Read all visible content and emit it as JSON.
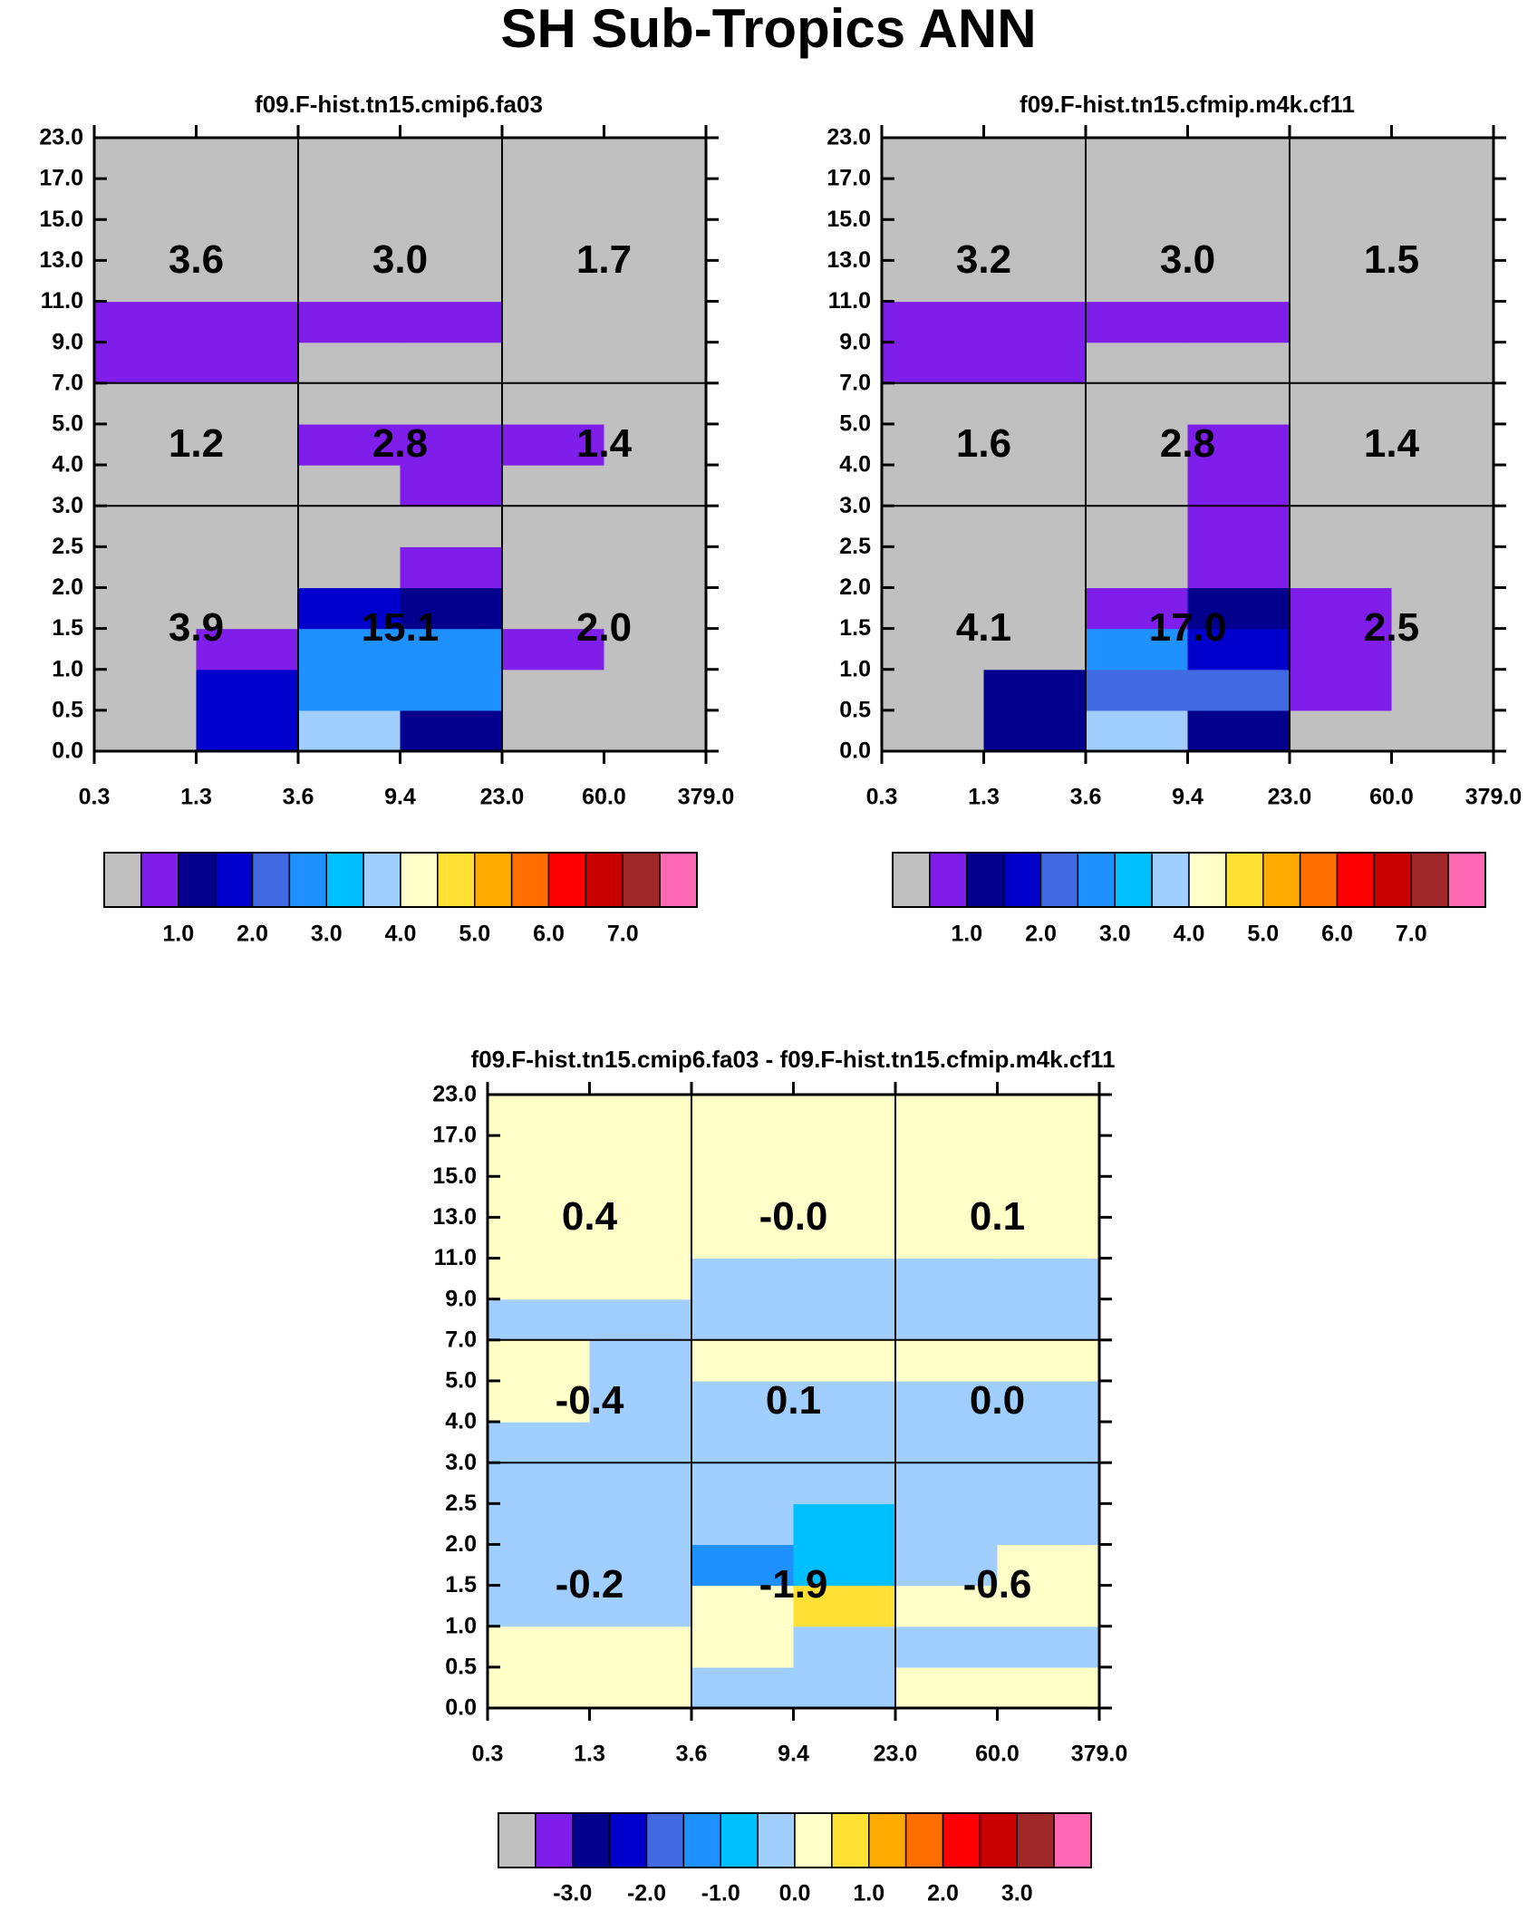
{
  "title": "SH Sub-Tropics ANN",
  "colors": {
    "gray": "#c0c0c0",
    "purple": "#7f1eeb",
    "navy": "#02008c",
    "blue": "#0000cd",
    "royal": "#4169e1",
    "dodger": "#1e90ff",
    "cyan": "#00bfff",
    "lightblue": "#a0cfff",
    "cream": "#ffffc8",
    "yellow": "#ffe135",
    "orange": "#ffaa00",
    "darkorange": "#ff6e00",
    "red": "#ff0000",
    "crimson": "#c80000",
    "brown": "#a02828",
    "pink": "#ff69b4"
  },
  "chart_data": [
    {
      "type": "heatmap",
      "title": "f09.F-hist.tn15.cmip6.fa03",
      "x_tick_labels": [
        "0.3",
        "1.3",
        "3.6",
        "9.4",
        "23.0",
        "60.0",
        "379.0"
      ],
      "y_tick_labels": [
        "0.0",
        "0.5",
        "1.0",
        "1.5",
        "2.0",
        "2.5",
        "3.0",
        "4.0",
        "5.0",
        "7.0",
        "9.0",
        "11.0",
        "13.0",
        "15.0",
        "17.0",
        "23.0"
      ],
      "x_bin_edges": [
        0.3,
        1.3,
        3.6,
        9.4,
        23.0,
        60.0,
        379.0
      ],
      "y_bin_edges": [
        0.0,
        0.5,
        1.0,
        1.5,
        2.0,
        2.5,
        3.0,
        4.0,
        5.0,
        7.0,
        9.0,
        11.0,
        13.0,
        15.0,
        17.0,
        23.0
      ],
      "value_range": [
        0.0,
        7.0
      ],
      "rows_bottom_to_top": [
        [
          "gray",
          "blue",
          "lightblue",
          "navy",
          "gray",
          "gray"
        ],
        [
          "gray",
          "blue",
          "dodger",
          "dodger",
          "gray",
          "gray"
        ],
        [
          "gray",
          "purple",
          "dodger",
          "dodger",
          "purple",
          "gray"
        ],
        [
          "gray",
          "gray",
          "blue",
          "navy",
          "gray",
          "gray"
        ],
        [
          "gray",
          "gray",
          "gray",
          "purple",
          "gray",
          "gray"
        ],
        [
          "gray",
          "gray",
          "gray",
          "gray",
          "gray",
          "gray"
        ],
        [
          "gray",
          "gray",
          "gray",
          "purple",
          "gray",
          "gray"
        ],
        [
          "gray",
          "gray",
          "purple",
          "purple",
          "purple",
          "gray"
        ],
        [
          "gray",
          "gray",
          "gray",
          "gray",
          "gray",
          "gray"
        ],
        [
          "purple",
          "purple",
          "gray",
          "gray",
          "gray",
          "gray"
        ],
        [
          "purple",
          "purple",
          "purple",
          "purple",
          "gray",
          "gray"
        ],
        [
          "gray",
          "gray",
          "gray",
          "gray",
          "gray",
          "gray"
        ],
        [
          "gray",
          "gray",
          "gray",
          "gray",
          "gray",
          "gray"
        ],
        [
          "gray",
          "gray",
          "gray",
          "gray",
          "gray",
          "gray"
        ],
        [
          "gray",
          "gray",
          "gray",
          "gray",
          "gray",
          "gray"
        ]
      ],
      "box_values_top_to_bottom": [
        [
          "3.6",
          "3.0",
          "1.7"
        ],
        [
          "1.2",
          "2.8",
          "1.4"
        ],
        [
          "3.9",
          "15.1",
          "2.0"
        ]
      ],
      "colorbar": {
        "colors": [
          "gray",
          "purple",
          "navy",
          "blue",
          "royal",
          "dodger",
          "cyan",
          "lightblue",
          "cream",
          "yellow",
          "orange",
          "darkorange",
          "red",
          "crimson",
          "brown",
          "pink"
        ],
        "labels": [
          "1.0",
          "2.0",
          "3.0",
          "4.0",
          "5.0",
          "6.0",
          "7.0"
        ],
        "label_boundaries": [
          2,
          4,
          6,
          8,
          10,
          12,
          14
        ]
      }
    },
    {
      "type": "heatmap",
      "title": "f09.F-hist.tn15.cfmip.m4k.cf11",
      "x_tick_labels": [
        "0.3",
        "1.3",
        "3.6",
        "9.4",
        "23.0",
        "60.0",
        "379.0"
      ],
      "y_tick_labels": [
        "0.0",
        "0.5",
        "1.0",
        "1.5",
        "2.0",
        "2.5",
        "3.0",
        "4.0",
        "5.0",
        "7.0",
        "9.0",
        "11.0",
        "13.0",
        "15.0",
        "17.0",
        "23.0"
      ],
      "x_bin_edges": [
        0.3,
        1.3,
        3.6,
        9.4,
        23.0,
        60.0,
        379.0
      ],
      "y_bin_edges": [
        0.0,
        0.5,
        1.0,
        1.5,
        2.0,
        2.5,
        3.0,
        4.0,
        5.0,
        7.0,
        9.0,
        11.0,
        13.0,
        15.0,
        17.0,
        23.0
      ],
      "value_range": [
        0.0,
        7.0
      ],
      "rows_bottom_to_top": [
        [
          "gray",
          "navy",
          "lightblue",
          "navy",
          "gray",
          "gray"
        ],
        [
          "gray",
          "navy",
          "royal",
          "royal",
          "purple",
          "gray"
        ],
        [
          "gray",
          "gray",
          "dodger",
          "blue",
          "purple",
          "gray"
        ],
        [
          "gray",
          "gray",
          "purple",
          "navy",
          "purple",
          "gray"
        ],
        [
          "gray",
          "gray",
          "gray",
          "purple",
          "gray",
          "gray"
        ],
        [
          "gray",
          "gray",
          "gray",
          "purple",
          "gray",
          "gray"
        ],
        [
          "gray",
          "gray",
          "gray",
          "purple",
          "gray",
          "gray"
        ],
        [
          "gray",
          "gray",
          "gray",
          "purple",
          "gray",
          "gray"
        ],
        [
          "gray",
          "gray",
          "gray",
          "gray",
          "gray",
          "gray"
        ],
        [
          "purple",
          "purple",
          "gray",
          "gray",
          "gray",
          "gray"
        ],
        [
          "purple",
          "purple",
          "purple",
          "purple",
          "gray",
          "gray"
        ],
        [
          "gray",
          "gray",
          "gray",
          "gray",
          "gray",
          "gray"
        ],
        [
          "gray",
          "gray",
          "gray",
          "gray",
          "gray",
          "gray"
        ],
        [
          "gray",
          "gray",
          "gray",
          "gray",
          "gray",
          "gray"
        ],
        [
          "gray",
          "gray",
          "gray",
          "gray",
          "gray",
          "gray"
        ]
      ],
      "box_values_top_to_bottom": [
        [
          "3.2",
          "3.0",
          "1.5"
        ],
        [
          "1.6",
          "2.8",
          "1.4"
        ],
        [
          "4.1",
          "17.0",
          "2.5"
        ]
      ],
      "colorbar": {
        "colors": [
          "gray",
          "purple",
          "navy",
          "blue",
          "royal",
          "dodger",
          "cyan",
          "lightblue",
          "cream",
          "yellow",
          "orange",
          "darkorange",
          "red",
          "crimson",
          "brown",
          "pink"
        ],
        "labels": [
          "1.0",
          "2.0",
          "3.0",
          "4.0",
          "5.0",
          "6.0",
          "7.0"
        ],
        "label_boundaries": [
          2,
          4,
          6,
          8,
          10,
          12,
          14
        ]
      }
    },
    {
      "type": "heatmap",
      "title": "f09.F-hist.tn15.cmip6.fa03 - f09.F-hist.tn15.cfmip.m4k.cf11",
      "x_tick_labels": [
        "0.3",
        "1.3",
        "3.6",
        "9.4",
        "23.0",
        "60.0",
        "379.0"
      ],
      "y_tick_labels": [
        "0.0",
        "0.5",
        "1.0",
        "1.5",
        "2.0",
        "2.5",
        "3.0",
        "4.0",
        "5.0",
        "7.0",
        "9.0",
        "11.0",
        "13.0",
        "15.0",
        "17.0",
        "23.0"
      ],
      "x_bin_edges": [
        0.3,
        1.3,
        3.6,
        9.4,
        23.0,
        60.0,
        379.0
      ],
      "y_bin_edges": [
        0.0,
        0.5,
        1.0,
        1.5,
        2.0,
        2.5,
        3.0,
        4.0,
        5.0,
        7.0,
        9.0,
        11.0,
        13.0,
        15.0,
        17.0,
        23.0
      ],
      "value_range": [
        -3.0,
        3.0
      ],
      "rows_bottom_to_top": [
        [
          "cream",
          "cream",
          "lightblue",
          "lightblue",
          "cream",
          "cream"
        ],
        [
          "cream",
          "cream",
          "cream",
          "lightblue",
          "lightblue",
          "lightblue"
        ],
        [
          "lightblue",
          "lightblue",
          "cream",
          "yellow",
          "cream",
          "cream"
        ],
        [
          "lightblue",
          "lightblue",
          "dodger",
          "cyan",
          "lightblue",
          "cream"
        ],
        [
          "lightblue",
          "lightblue",
          "lightblue",
          "cyan",
          "lightblue",
          "lightblue"
        ],
        [
          "lightblue",
          "lightblue",
          "lightblue",
          "lightblue",
          "lightblue",
          "lightblue"
        ],
        [
          "lightblue",
          "lightblue",
          "lightblue",
          "lightblue",
          "lightblue",
          "lightblue"
        ],
        [
          "cream",
          "lightblue",
          "lightblue",
          "lightblue",
          "lightblue",
          "lightblue"
        ],
        [
          "cream",
          "lightblue",
          "cream",
          "cream",
          "cream",
          "cream"
        ],
        [
          "lightblue",
          "lightblue",
          "lightblue",
          "lightblue",
          "lightblue",
          "lightblue"
        ],
        [
          "cream",
          "cream",
          "lightblue",
          "lightblue",
          "lightblue",
          "lightblue"
        ],
        [
          "cream",
          "cream",
          "cream",
          "cream",
          "cream",
          "cream"
        ],
        [
          "cream",
          "cream",
          "cream",
          "cream",
          "cream",
          "cream"
        ],
        [
          "cream",
          "cream",
          "cream",
          "cream",
          "cream",
          "cream"
        ],
        [
          "cream",
          "cream",
          "cream",
          "cream",
          "cream",
          "cream"
        ]
      ],
      "box_values_top_to_bottom": [
        [
          "0.4",
          "-0.0",
          "0.1"
        ],
        [
          "-0.4",
          "0.1",
          "0.0"
        ],
        [
          "-0.2",
          "-1.9",
          "-0.6"
        ]
      ],
      "colorbar": {
        "colors": [
          "gray",
          "purple",
          "navy",
          "blue",
          "royal",
          "dodger",
          "cyan",
          "lightblue",
          "cream",
          "yellow",
          "orange",
          "darkorange",
          "red",
          "crimson",
          "brown",
          "pink"
        ],
        "labels": [
          "-3.0",
          "-2.0",
          "-1.0",
          "0.0",
          "1.0",
          "2.0",
          "3.0"
        ],
        "label_boundaries": [
          2,
          4,
          6,
          8,
          10,
          12,
          14
        ]
      }
    }
  ]
}
